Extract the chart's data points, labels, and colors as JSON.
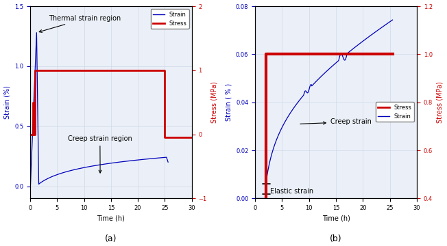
{
  "panel_a": {
    "title": "(a)",
    "xlabel": "Time (h)",
    "ylabel_left": "Strain (%)",
    "ylabel_right": "Stress (MPa)",
    "xlim": [
      0,
      30
    ],
    "ylim_left": [
      -0.1,
      1.5
    ],
    "ylim_right": [
      -1,
      2
    ],
    "yticks_left": [
      0,
      0.5,
      1.0,
      1.5
    ],
    "yticks_right": [
      -1,
      0,
      1,
      2
    ],
    "xticks": [
      0,
      5,
      10,
      15,
      20,
      25,
      30
    ],
    "annotation1_text": "Thermal strain region",
    "annotation2_text": "Creep strain region",
    "legend_strain": "Strain",
    "legend_stress": "Stress",
    "strain_color": "#0000BB",
    "stress_color": "#CC0000",
    "grid_color": "#D0D8E8",
    "bg_color": "#EBF0F8"
  },
  "panel_b": {
    "title": "(b)",
    "xlabel": "Time (h)",
    "ylabel_left": "Strain ( % )",
    "ylabel_right": "Stress (MPa)",
    "xlim": [
      0,
      30
    ],
    "ylim_left": [
      0,
      0.08
    ],
    "ylim_right": [
      0.4,
      1.2
    ],
    "yticks_left": [
      0,
      0.02,
      0.04,
      0.06,
      0.08
    ],
    "yticks_right": [
      0.4,
      0.6,
      0.8,
      1.0,
      1.2
    ],
    "xticks": [
      0,
      5,
      10,
      15,
      20,
      25,
      30
    ],
    "annotation1_text": "Creep strain",
    "annotation2_text": "Elastic strain",
    "legend_stress": "Stress",
    "legend_strain": "Strain",
    "strain_color": "#0000BB",
    "stress_color": "#CC0000",
    "grid_color": "#D0D8E8",
    "bg_color": "#EBF0F8"
  }
}
